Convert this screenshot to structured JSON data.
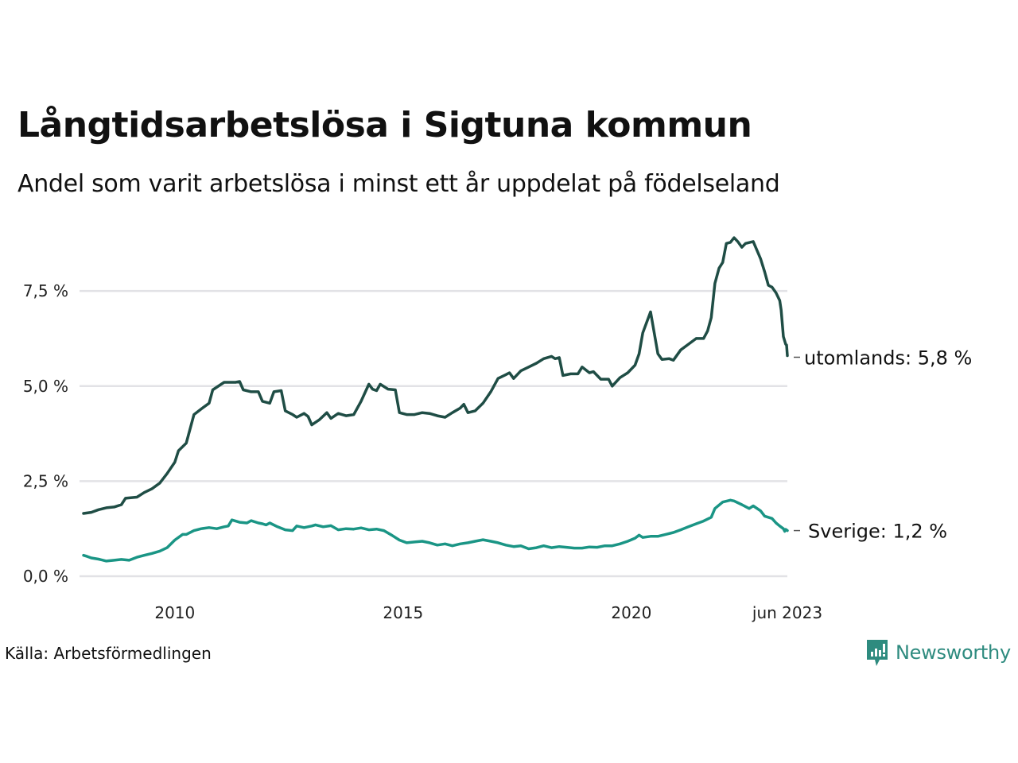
{
  "title": "Långtidsarbetslösa i Sigtuna kommun",
  "subtitle": "Andel som varit arbetslösa i minst ett år uppdelat på födelseland",
  "source": "Källa: Arbetsförmedlingen",
  "brand": {
    "name": "Newsworthy",
    "color": "#2e8b7f"
  },
  "chart_data": {
    "type": "line",
    "title": "Långtidsarbetslösa i Sigtuna kommun",
    "subtitle": "Andel som varit arbetslösa i minst ett år uppdelat på födelseland",
    "xlabel": "",
    "ylabel": "",
    "x_start": "2008-01",
    "x_end": "2023-06",
    "x_frequency": "monthly",
    "xlim": [
      2008.0,
      2023.4167
    ],
    "ylim": [
      0,
      9.2
    ],
    "grid": true,
    "x_ticks": [
      {
        "value": 2010.0,
        "label": "2010"
      },
      {
        "value": 2015.0,
        "label": "2015"
      },
      {
        "value": 2020.0,
        "label": "2020"
      },
      {
        "value": 2023.4167,
        "label": "jun 2023"
      }
    ],
    "y_ticks": [
      {
        "value": 0,
        "label": "0,0 %"
      },
      {
        "value": 2.5,
        "label": "2,5 %"
      },
      {
        "value": 5.0,
        "label": "5,0 %"
      },
      {
        "value": 7.5,
        "label": "7,5 %"
      }
    ],
    "series": [
      {
        "name": "utomlands",
        "color": "#1f4d45",
        "end_label": "utomlands: 5,8 %",
        "last_value": 5.8,
        "points": [
          [
            2008.0,
            1.65
          ],
          [
            2008.17,
            1.68
          ],
          [
            2008.33,
            1.75
          ],
          [
            2008.5,
            1.8
          ],
          [
            2008.67,
            1.82
          ],
          [
            2008.83,
            1.88
          ],
          [
            2008.92,
            2.05
          ],
          [
            2009.17,
            2.08
          ],
          [
            2009.33,
            2.2
          ],
          [
            2009.5,
            2.3
          ],
          [
            2009.67,
            2.45
          ],
          [
            2009.83,
            2.7
          ],
          [
            2010.0,
            3.0
          ],
          [
            2010.08,
            3.3
          ],
          [
            2010.25,
            3.5
          ],
          [
            2010.42,
            4.25
          ],
          [
            2010.58,
            4.4
          ],
          [
            2010.75,
            4.55
          ],
          [
            2010.83,
            4.9
          ],
          [
            2011.08,
            5.1
          ],
          [
            2011.33,
            5.1
          ],
          [
            2011.42,
            5.12
          ],
          [
            2011.5,
            4.9
          ],
          [
            2011.67,
            4.85
          ],
          [
            2011.83,
            4.85
          ],
          [
            2011.92,
            4.6
          ],
          [
            2012.08,
            4.55
          ],
          [
            2012.17,
            4.85
          ],
          [
            2012.33,
            4.88
          ],
          [
            2012.42,
            4.35
          ],
          [
            2012.58,
            4.25
          ],
          [
            2012.67,
            4.18
          ],
          [
            2012.83,
            4.28
          ],
          [
            2012.92,
            4.2
          ],
          [
            2013.0,
            3.98
          ],
          [
            2013.17,
            4.12
          ],
          [
            2013.33,
            4.3
          ],
          [
            2013.42,
            4.15
          ],
          [
            2013.58,
            4.28
          ],
          [
            2013.75,
            4.22
          ],
          [
            2013.92,
            4.25
          ],
          [
            2014.08,
            4.6
          ],
          [
            2014.25,
            5.05
          ],
          [
            2014.33,
            4.92
          ],
          [
            2014.42,
            4.88
          ],
          [
            2014.5,
            5.05
          ],
          [
            2014.67,
            4.92
          ],
          [
            2014.83,
            4.9
          ],
          [
            2014.92,
            4.3
          ],
          [
            2015.08,
            4.25
          ],
          [
            2015.25,
            4.25
          ],
          [
            2015.42,
            4.3
          ],
          [
            2015.58,
            4.28
          ],
          [
            2015.75,
            4.22
          ],
          [
            2015.92,
            4.18
          ],
          [
            2016.08,
            4.3
          ],
          [
            2016.25,
            4.42
          ],
          [
            2016.33,
            4.52
          ],
          [
            2016.42,
            4.3
          ],
          [
            2016.58,
            4.35
          ],
          [
            2016.75,
            4.55
          ],
          [
            2016.92,
            4.85
          ],
          [
            2017.08,
            5.2
          ],
          [
            2017.25,
            5.3
          ],
          [
            2017.33,
            5.35
          ],
          [
            2017.42,
            5.2
          ],
          [
            2017.58,
            5.4
          ],
          [
            2017.75,
            5.5
          ],
          [
            2017.92,
            5.6
          ],
          [
            2018.08,
            5.72
          ],
          [
            2018.25,
            5.78
          ],
          [
            2018.33,
            5.72
          ],
          [
            2018.42,
            5.75
          ],
          [
            2018.5,
            5.28
          ],
          [
            2018.67,
            5.32
          ],
          [
            2018.83,
            5.32
          ],
          [
            2018.92,
            5.5
          ],
          [
            2019.08,
            5.35
          ],
          [
            2019.17,
            5.38
          ],
          [
            2019.33,
            5.18
          ],
          [
            2019.5,
            5.18
          ],
          [
            2019.58,
            5.0
          ],
          [
            2019.75,
            5.22
          ],
          [
            2019.92,
            5.35
          ],
          [
            2020.08,
            5.55
          ],
          [
            2020.17,
            5.85
          ],
          [
            2020.25,
            6.4
          ],
          [
            2020.42,
            6.95
          ],
          [
            2020.58,
            5.85
          ],
          [
            2020.67,
            5.7
          ],
          [
            2020.83,
            5.72
          ],
          [
            2020.92,
            5.68
          ],
          [
            2021.08,
            5.95
          ],
          [
            2021.25,
            6.1
          ],
          [
            2021.42,
            6.25
          ],
          [
            2021.58,
            6.25
          ],
          [
            2021.67,
            6.45
          ],
          [
            2021.75,
            6.8
          ],
          [
            2021.83,
            7.7
          ],
          [
            2021.92,
            8.1
          ],
          [
            2022.0,
            8.25
          ],
          [
            2022.08,
            8.75
          ],
          [
            2022.17,
            8.78
          ],
          [
            2022.25,
            8.9
          ],
          [
            2022.33,
            8.8
          ],
          [
            2022.42,
            8.65
          ],
          [
            2022.5,
            8.75
          ],
          [
            2022.67,
            8.8
          ],
          [
            2022.83,
            8.35
          ],
          [
            2022.92,
            8.0
          ],
          [
            2023.0,
            7.65
          ],
          [
            2023.08,
            7.6
          ],
          [
            2023.17,
            7.45
          ],
          [
            2023.25,
            7.25
          ],
          [
            2023.28,
            7.0
          ],
          [
            2023.33,
            6.3
          ],
          [
            2023.38,
            6.1
          ],
          [
            2023.4,
            6.08
          ],
          [
            2023.4167,
            5.8
          ]
        ]
      },
      {
        "name": "Sverige",
        "color": "#1a9585",
        "end_label": "Sverige: 1,2 %",
        "last_value": 1.2,
        "points": [
          [
            2008.0,
            0.55
          ],
          [
            2008.08,
            0.52
          ],
          [
            2008.17,
            0.48
          ],
          [
            2008.33,
            0.45
          ],
          [
            2008.5,
            0.4
          ],
          [
            2008.67,
            0.42
          ],
          [
            2008.83,
            0.44
          ],
          [
            2009.0,
            0.42
          ],
          [
            2009.17,
            0.5
          ],
          [
            2009.33,
            0.55
          ],
          [
            2009.5,
            0.6
          ],
          [
            2009.67,
            0.66
          ],
          [
            2009.83,
            0.75
          ],
          [
            2010.0,
            0.95
          ],
          [
            2010.17,
            1.1
          ],
          [
            2010.25,
            1.1
          ],
          [
            2010.42,
            1.2
          ],
          [
            2010.58,
            1.25
          ],
          [
            2010.75,
            1.28
          ],
          [
            2010.92,
            1.25
          ],
          [
            2011.08,
            1.3
          ],
          [
            2011.17,
            1.32
          ],
          [
            2011.25,
            1.48
          ],
          [
            2011.42,
            1.42
          ],
          [
            2011.58,
            1.4
          ],
          [
            2011.67,
            1.46
          ],
          [
            2011.83,
            1.4
          ],
          [
            2011.92,
            1.38
          ],
          [
            2012.0,
            1.35
          ],
          [
            2012.08,
            1.4
          ],
          [
            2012.25,
            1.3
          ],
          [
            2012.42,
            1.22
          ],
          [
            2012.58,
            1.2
          ],
          [
            2012.67,
            1.32
          ],
          [
            2012.83,
            1.28
          ],
          [
            2013.0,
            1.32
          ],
          [
            2013.08,
            1.35
          ],
          [
            2013.25,
            1.3
          ],
          [
            2013.42,
            1.33
          ],
          [
            2013.58,
            1.22
          ],
          [
            2013.75,
            1.25
          ],
          [
            2013.92,
            1.24
          ],
          [
            2014.08,
            1.27
          ],
          [
            2014.25,
            1.22
          ],
          [
            2014.42,
            1.24
          ],
          [
            2014.58,
            1.2
          ],
          [
            2014.75,
            1.08
          ],
          [
            2014.92,
            0.95
          ],
          [
            2015.08,
            0.88
          ],
          [
            2015.25,
            0.9
          ],
          [
            2015.42,
            0.92
          ],
          [
            2015.58,
            0.88
          ],
          [
            2015.75,
            0.82
          ],
          [
            2015.92,
            0.85
          ],
          [
            2016.08,
            0.8
          ],
          [
            2016.25,
            0.85
          ],
          [
            2016.42,
            0.88
          ],
          [
            2016.58,
            0.92
          ],
          [
            2016.75,
            0.96
          ],
          [
            2016.92,
            0.92
          ],
          [
            2017.08,
            0.88
          ],
          [
            2017.25,
            0.82
          ],
          [
            2017.42,
            0.78
          ],
          [
            2017.58,
            0.8
          ],
          [
            2017.75,
            0.72
          ],
          [
            2017.92,
            0.75
          ],
          [
            2018.08,
            0.8
          ],
          [
            2018.25,
            0.75
          ],
          [
            2018.42,
            0.78
          ],
          [
            2018.58,
            0.76
          ],
          [
            2018.75,
            0.74
          ],
          [
            2018.92,
            0.74
          ],
          [
            2019.08,
            0.77
          ],
          [
            2019.25,
            0.76
          ],
          [
            2019.42,
            0.8
          ],
          [
            2019.58,
            0.8
          ],
          [
            2019.75,
            0.85
          ],
          [
            2019.92,
            0.92
          ],
          [
            2020.08,
            1.0
          ],
          [
            2020.17,
            1.08
          ],
          [
            2020.25,
            1.02
          ],
          [
            2020.42,
            1.05
          ],
          [
            2020.58,
            1.05
          ],
          [
            2020.75,
            1.1
          ],
          [
            2020.92,
            1.15
          ],
          [
            2021.08,
            1.22
          ],
          [
            2021.25,
            1.3
          ],
          [
            2021.42,
            1.38
          ],
          [
            2021.58,
            1.45
          ],
          [
            2021.75,
            1.55
          ],
          [
            2021.83,
            1.78
          ],
          [
            2022.0,
            1.95
          ],
          [
            2022.17,
            2.0
          ],
          [
            2022.25,
            1.98
          ],
          [
            2022.42,
            1.88
          ],
          [
            2022.58,
            1.78
          ],
          [
            2022.67,
            1.85
          ],
          [
            2022.83,
            1.72
          ],
          [
            2022.92,
            1.58
          ],
          [
            2023.08,
            1.52
          ],
          [
            2023.17,
            1.4
          ],
          [
            2023.25,
            1.32
          ],
          [
            2023.33,
            1.25
          ],
          [
            2023.36,
            1.18
          ],
          [
            2023.38,
            1.23
          ],
          [
            2023.4167,
            1.2
          ]
        ]
      }
    ]
  }
}
